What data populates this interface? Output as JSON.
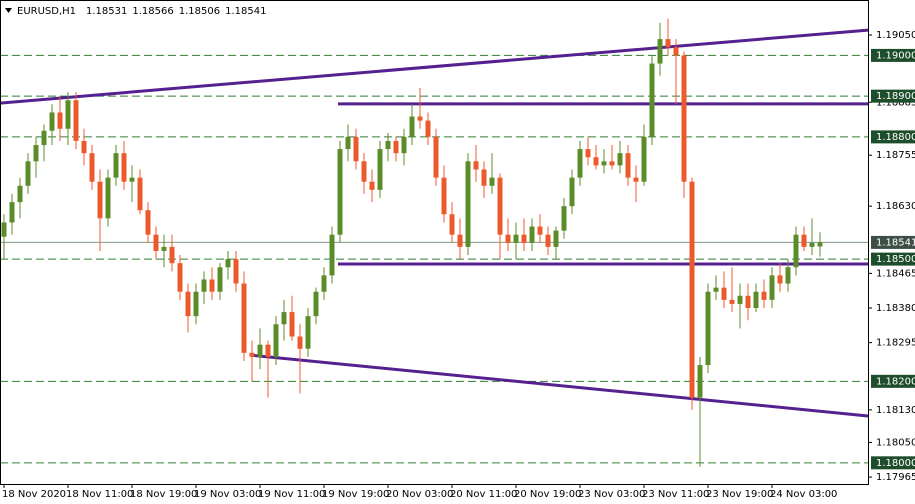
{
  "chart_data": {
    "type": "candlestick",
    "symbol": "EURUSD,H1",
    "header_values": [
      "1.18531",
      "1.18566",
      "1.18506",
      "1.18541"
    ],
    "up_color": "#5b8c2a",
    "down_color": "#ec5a2c",
    "level_color": "#2e7d32",
    "trendline_color": "#55208f",
    "xlim": [
      -0.5,
      108
    ],
    "ylim": [
      1.17948,
      1.19136
    ],
    "xticks": [
      {
        "value": 0,
        "label": "18 Nov 2020"
      },
      {
        "value": 8,
        "label": "18 Nov 11:00"
      },
      {
        "value": 16,
        "label": "18 Nov 19:00"
      },
      {
        "value": 24,
        "label": "19 Nov 03:00"
      },
      {
        "value": 32,
        "label": "19 Nov 11:00"
      },
      {
        "value": 40,
        "label": "19 Nov 19:00"
      },
      {
        "value": 48,
        "label": "20 Nov 03:00"
      },
      {
        "value": 56,
        "label": "20 Nov 11:00"
      },
      {
        "value": 64,
        "label": "20 Nov 19:00"
      },
      {
        "value": 72,
        "label": "23 Nov 03:00"
      },
      {
        "value": 80,
        "label": "23 Nov 11:00"
      },
      {
        "value": 88,
        "label": "23 Nov 19:00"
      },
      {
        "value": 96,
        "label": "24 Nov 03:00"
      }
    ],
    "yticks": [
      {
        "value": 1.1905,
        "label": "1.19050"
      },
      1.18885,
      1.18755,
      {
        "value": 1.1863,
        "label": "1.18630"
      },
      1.18465,
      {
        "value": 1.1838,
        "label": "1.18380"
      },
      1.18295,
      {
        "value": 1.1813,
        "label": "1.18130"
      },
      {
        "value": 1.1805,
        "label": "1.18050"
      },
      1.17965
    ],
    "levels": [
      {
        "value": 1.19,
        "label": "1.19000"
      },
      {
        "value": 1.189,
        "label": "1.18900"
      },
      {
        "value": 1.188,
        "label": "1.18800"
      },
      {
        "value": 1.185,
        "label": "1.18500"
      },
      {
        "value": 1.182,
        "label": "1.18200"
      },
      {
        "value": 1.18,
        "label": "1.18000"
      }
    ],
    "current_price": 1.18541,
    "trendlines": [
      {
        "x": [
          -0.5,
          108
        ],
        "y": [
          1.18883,
          1.19062
        ]
      },
      {
        "x": [
          41.75,
          108
        ],
        "y": [
          1.18881,
          1.18881
        ]
      },
      {
        "x": [
          41.75,
          108
        ],
        "y": [
          1.18488,
          1.18488
        ]
      },
      {
        "x": [
          31,
          108
        ],
        "y": [
          1.18264,
          1.18115
        ]
      }
    ],
    "open": [
      1.18555,
      1.1859,
      1.1864,
      1.1868,
      1.1874,
      1.1878,
      1.18815,
      1.1886,
      1.1882,
      1.1889,
      1.1879,
      1.1876,
      1.1869,
      1.186,
      1.187,
      1.1876,
      1.1869,
      1.187,
      1.1862,
      1.1856,
      1.1852,
      1.1853,
      1.1849,
      1.1842,
      1.1836,
      1.1842,
      1.1845,
      1.1842,
      1.1848,
      1.185,
      1.1844,
      1.1827,
      1.1826,
      1.1829,
      1.1826,
      1.1834,
      1.1837,
      1.1831,
      1.1828,
      1.1836,
      1.1842,
      1.1846,
      1.1856,
      1.1877,
      1.188,
      1.1874,
      1.1869,
      1.1867,
      1.1877,
      1.1879,
      1.1876,
      1.188,
      1.1885,
      1.1884,
      1.188,
      1.187,
      1.1861,
      1.1856,
      1.1853,
      1.1874,
      1.1872,
      1.1868,
      1.187,
      1.1856,
      1.1854,
      1.1856,
      1.1854,
      1.1858,
      1.1856,
      1.1853,
      1.1857,
      1.1863,
      1.187,
      1.1877,
      1.1875,
      1.1873,
      1.1874,
      1.1873,
      1.1876,
      1.187,
      1.1869,
      1.188,
      1.1898,
      1.1904,
      1.1902,
      1.19,
      1.1869,
      1.1816,
      1.1824,
      1.1842,
      1.1843,
      1.184,
      1.1839,
      1.1841,
      1.1838,
      1.1842,
      1.184,
      1.1846,
      1.1844,
      1.1848,
      1.1856,
      1.1853,
      1.18531
    ],
    "high": [
      1.1861,
      1.1866,
      1.187,
      1.1876,
      1.188,
      1.1883,
      1.1888,
      1.189,
      1.1891,
      1.1891,
      1.1882,
      1.1878,
      1.1872,
      1.1872,
      1.1878,
      1.1879,
      1.1873,
      1.1872,
      1.1864,
      1.1858,
      1.1856,
      1.1856,
      1.1851,
      1.1844,
      1.1844,
      1.1847,
      1.1848,
      1.1849,
      1.1852,
      1.1852,
      1.1847,
      1.183,
      1.1833,
      1.183,
      1.1836,
      1.184,
      1.1841,
      1.1834,
      1.1838,
      1.1843,
      1.1848,
      1.1858,
      1.1879,
      1.1883,
      1.1882,
      1.1876,
      1.1872,
      1.1879,
      1.1881,
      1.188,
      1.1882,
      1.1888,
      1.1892,
      1.1886,
      1.1882,
      1.1873,
      1.1864,
      1.186,
      1.1876,
      1.1878,
      1.1874,
      1.1876,
      1.1871,
      1.186,
      1.1859,
      1.186,
      1.186,
      1.1861,
      1.1858,
      1.1858,
      1.1865,
      1.1872,
      1.1879,
      1.188,
      1.1878,
      1.1877,
      1.1878,
      1.1879,
      1.1878,
      1.1873,
      1.1883,
      1.19,
      1.1908,
      1.1909,
      1.1904,
      1.1901,
      1.187,
      1.1826,
      1.1844,
      1.1846,
      1.1847,
      1.1848,
      1.1844,
      1.1844,
      1.1844,
      1.1845,
      1.1848,
      1.1849,
      1.185,
      1.1858,
      1.1858,
      1.186,
      1.18566
    ],
    "low": [
      1.185,
      1.1856,
      1.186,
      1.1866,
      1.187,
      1.1874,
      1.1878,
      1.1879,
      1.1878,
      1.1877,
      1.1873,
      1.1867,
      1.1852,
      1.1858,
      1.1868,
      1.1867,
      1.1864,
      1.1861,
      1.1854,
      1.185,
      1.1848,
      1.1847,
      1.184,
      1.1832,
      1.1834,
      1.1839,
      1.184,
      1.184,
      1.1845,
      1.1842,
      1.1825,
      1.182,
      1.1823,
      1.1816,
      1.1824,
      1.183,
      1.183,
      1.1817,
      1.1826,
      1.1834,
      1.184,
      1.1844,
      1.1854,
      1.1874,
      1.1872,
      1.1866,
      1.1864,
      1.1865,
      1.1874,
      1.1874,
      1.1873,
      1.1878,
      1.1882,
      1.1878,
      1.1868,
      1.1859,
      1.1854,
      1.185,
      1.1851,
      1.1869,
      1.1865,
      1.1866,
      1.185,
      1.1852,
      1.185,
      1.1852,
      1.1852,
      1.1854,
      1.1851,
      1.185,
      1.1855,
      1.1861,
      1.1868,
      1.1873,
      1.1872,
      1.1871,
      1.1872,
      1.1871,
      1.1868,
      1.1864,
      1.1868,
      1.1878,
      1.1895,
      1.19,
      1.1888,
      1.1865,
      1.1813,
      1.1799,
      1.1822,
      1.184,
      1.1838,
      1.1837,
      1.1833,
      1.1835,
      1.1837,
      1.1838,
      1.1838,
      1.1842,
      1.1842,
      1.1846,
      1.1852,
      1.1851,
      1.18506
    ],
    "close": [
      1.1859,
      1.1864,
      1.1868,
      1.1874,
      1.1878,
      1.18815,
      1.1886,
      1.1882,
      1.1889,
      1.1879,
      1.1876,
      1.1869,
      1.186,
      1.187,
      1.1876,
      1.1869,
      1.187,
      1.1862,
      1.1856,
      1.1852,
      1.1853,
      1.1849,
      1.1842,
      1.1836,
      1.1842,
      1.1845,
      1.1842,
      1.1848,
      1.185,
      1.1844,
      1.1827,
      1.1826,
      1.1829,
      1.1826,
      1.1834,
      1.1837,
      1.1831,
      1.1828,
      1.1836,
      1.1842,
      1.1846,
      1.1856,
      1.1877,
      1.188,
      1.1874,
      1.1869,
      1.1867,
      1.1877,
      1.1879,
      1.1876,
      1.188,
      1.1885,
      1.1884,
      1.188,
      1.187,
      1.1861,
      1.1856,
      1.1853,
      1.1874,
      1.1872,
      1.1868,
      1.187,
      1.1856,
      1.1854,
      1.1856,
      1.1854,
      1.1858,
      1.1856,
      1.1853,
      1.1857,
      1.1863,
      1.187,
      1.1877,
      1.1875,
      1.1873,
      1.1874,
      1.1873,
      1.1876,
      1.187,
      1.1869,
      1.188,
      1.1898,
      1.1904,
      1.1902,
      1.19,
      1.1869,
      1.1816,
      1.1824,
      1.1842,
      1.1843,
      1.184,
      1.1839,
      1.1841,
      1.1838,
      1.1842,
      1.184,
      1.1846,
      1.1844,
      1.1848,
      1.1856,
      1.1853,
      1.1854,
      1.18541
    ]
  }
}
